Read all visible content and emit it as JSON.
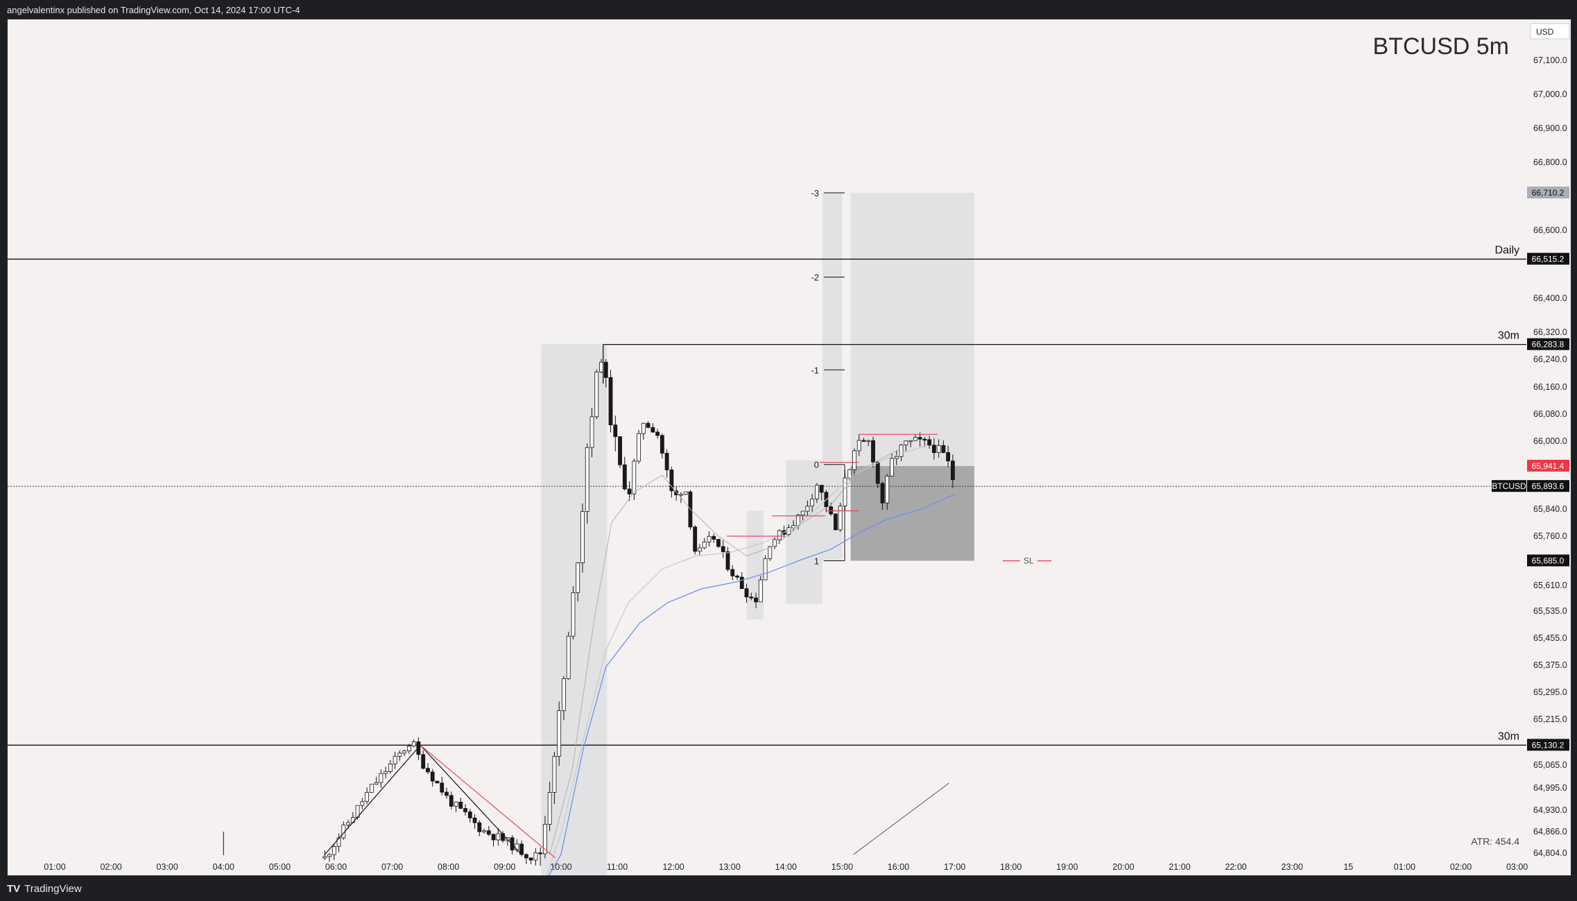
{
  "header": {
    "publisher": "angelvalentinx published on TradingView.com, Oct 14, 2024 17:00 UTC-4"
  },
  "footer": {
    "brand": "TradingView"
  },
  "chart_data": {
    "type": "candlestick",
    "title": "BTCUSD 5m",
    "currency": "USD",
    "symbol": "BTCUSD",
    "y_ticks": [
      67100.0,
      67000.0,
      66900.0,
      66800.0,
      66600.0,
      66400.0,
      66320.0,
      66240.0,
      66160.0,
      66080.0,
      66000.0,
      65840.0,
      65760.0,
      65610.0,
      65535.0,
      65455.0,
      65375.0,
      65295.0,
      65215.0,
      65065.0,
      64995.0,
      64930.0,
      64866.0,
      64804.0
    ],
    "y_tick_labels": [
      "67,100.0",
      "67,000.0",
      "66,900.0",
      "66,800.0",
      "66,600.0",
      "66,400.0",
      "66,320.0",
      "66,240.0",
      "66,160.0",
      "66,080.0",
      "66,000.0",
      "65,840.0",
      "65,760.0",
      "65,610.0",
      "65,535.0",
      "65,455.0",
      "65,375.0",
      "65,295.0",
      "65,215.0",
      "65,065.0",
      "64,995.0",
      "64,930.0",
      "64,866.0",
      "64,804.0"
    ],
    "x_tick_labels": [
      "01:00",
      "02:00",
      "03:00",
      "04:00",
      "05:00",
      "06:00",
      "07:00",
      "08:00",
      "09:00",
      "10:00",
      "11:00",
      "12:00",
      "13:00",
      "14:00",
      "15:00",
      "16:00",
      "17:00",
      "18:00",
      "19:00",
      "20:00",
      "21:00",
      "22:00",
      "23:00",
      "15",
      "01:00",
      "02:00",
      "03:00"
    ],
    "x_tick_hours": [
      1,
      2,
      3,
      4,
      5,
      6,
      7,
      8,
      9,
      10,
      11,
      12,
      13,
      14,
      15,
      16,
      17,
      18,
      19,
      20,
      21,
      22,
      23,
      24,
      25,
      26,
      27
    ],
    "horizontal_levels": [
      {
        "label": "Daily",
        "price": 66515.2,
        "price_label": "66,515.2"
      },
      {
        "label": "30m",
        "price": 66283.8,
        "price_label": "66,283.8",
        "start_hour": 10.75
      },
      {
        "label": "30m",
        "price": 65130.2,
        "price_label": "65,130.2"
      }
    ],
    "current_price": {
      "symbol": "BTCUSD",
      "price": 65893.6,
      "price_label": "65,893.6"
    },
    "price_tags": [
      {
        "price": 66710.2,
        "price_label": "66,710.2",
        "style": "gray"
      },
      {
        "price": 65941.4,
        "price_label": "65,941.4",
        "style": "red"
      },
      {
        "price": 65685.0,
        "price_label": "65,685.0",
        "style": "black"
      }
    ],
    "fib_levels": [
      {
        "label": "-3",
        "price": 66710.2
      },
      {
        "label": "-2",
        "price": 66462.2
      },
      {
        "label": "-1",
        "price": 66209.5
      },
      {
        "label": "0",
        "price": 65945.0
      },
      {
        "label": "1",
        "price": 65685.0
      }
    ],
    "sl_label": "SL",
    "atr": "ATR: 454.4",
    "colors": {
      "background": "#f4f1f0",
      "candle_up": "#ffffff",
      "candle_down": "#1a1a1a",
      "ema_fast": "#6f8fef",
      "level_red": "#e84a5f",
      "tag_red": "#f23645",
      "zone_gray": "#d9d9dc"
    }
  }
}
